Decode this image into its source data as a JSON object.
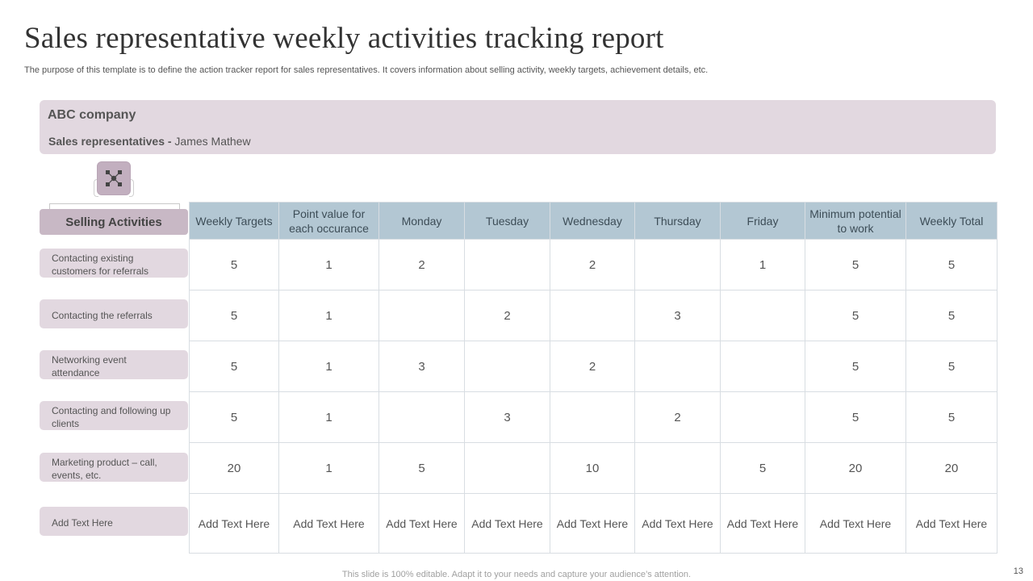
{
  "title": "Sales representative weekly activities tracking report",
  "subtitle": "The purpose of this template is to define the action tracker report for sales representatives. It covers information about selling activity, weekly targets, achievement details, etc.",
  "company": {
    "name": "ABC company",
    "rep_label": "Sales representatives -",
    "rep_name": "James Mathew"
  },
  "icon": "network-icon",
  "selling_activities_header": "Selling Activities",
  "activities": [
    "Contacting existing customers for referrals",
    "Contacting the referrals",
    "Networking event attendance",
    "Contacting and following up clients",
    "Marketing product – call, events, etc.",
    "Add Text Here"
  ],
  "table": {
    "headers": [
      "Weekly Targets",
      "Point value for each occurance",
      "Monday",
      "Tuesday",
      "Wednesday",
      "Thursday",
      "Friday",
      "Minimum potential to work",
      "Weekly Total"
    ],
    "rows": [
      [
        "5",
        "1",
        "2",
        "",
        "2",
        "",
        "1",
        "5",
        "5"
      ],
      [
        "5",
        "1",
        "",
        "2",
        "",
        "3",
        "",
        "5",
        "5"
      ],
      [
        "5",
        "1",
        "3",
        "",
        "2",
        "",
        "",
        "5",
        "5"
      ],
      [
        "5",
        "1",
        "",
        "3",
        "",
        "2",
        "",
        "5",
        "5"
      ],
      [
        "20",
        "1",
        "5",
        "",
        "10",
        "",
        "5",
        "20",
        "20"
      ],
      [
        "Add Text Here",
        "Add Text Here",
        "Add Text Here",
        "Add Text Here",
        "Add Text Here",
        "Add Text Here",
        "Add Text Here",
        "Add Text Here",
        "Add Text Here"
      ]
    ]
  },
  "footer": "This slide is 100% editable. Adapt it to your needs and capture your audience’s attention.",
  "page_number": "13",
  "colors": {
    "header_bg": "#b3c7d3",
    "activity_bg": "#e2d8e0",
    "sa_header_bg": "#c8b8c5"
  }
}
